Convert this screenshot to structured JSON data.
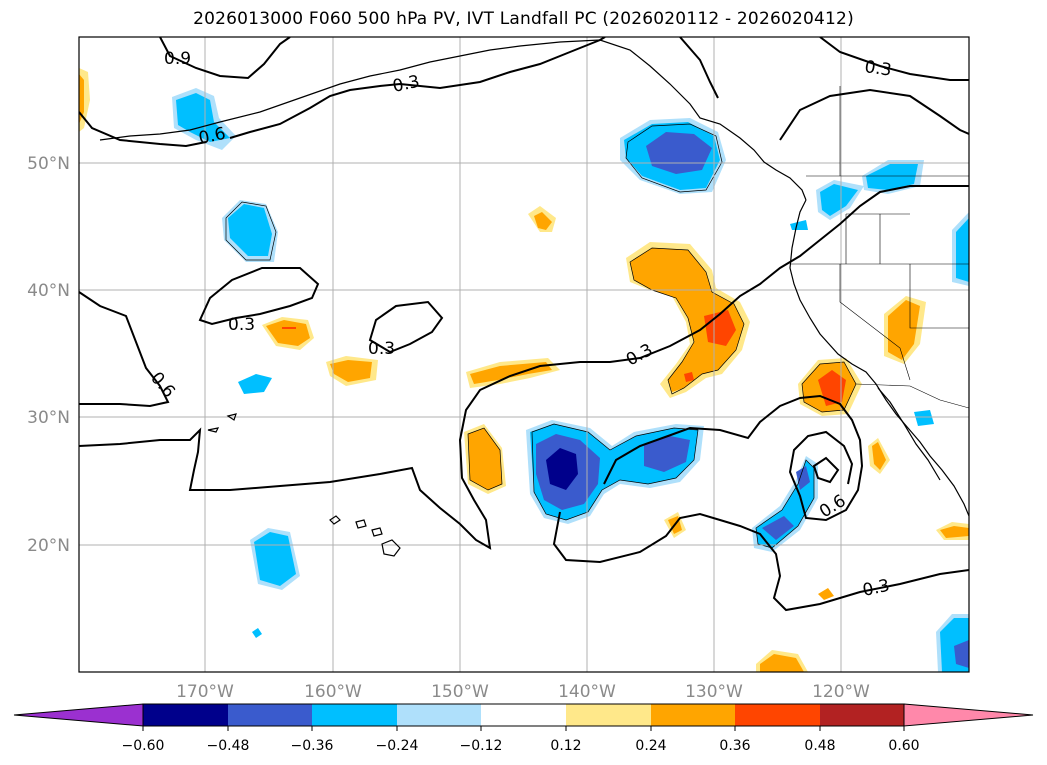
{
  "title": "2026013000 F060 500 hPa PV, IVT Landfall PC (2026020112 - 2026020412)",
  "lat_labels": [
    "50°N",
    "40°N",
    "30°N",
    "20°N"
  ],
  "lon_labels": [
    "170°W",
    "160°W",
    "150°W",
    "140°W",
    "130°W",
    "120°W"
  ],
  "contour_labels": [
    "0.9",
    "0.3",
    "0.6",
    "0.3",
    "0.3",
    "0.6",
    "0.3",
    "0.3",
    "0.6",
    "0.3"
  ],
  "colorbar": {
    "ticks": [
      "−0.60",
      "−0.48",
      "−0.36",
      "−0.24",
      "−0.12",
      "0.12",
      "0.24",
      "0.36",
      "0.48",
      "0.60"
    ],
    "colors": [
      "#9b30d0",
      "#00008b",
      "#3a5bcd",
      "#00bfff",
      "#afe0fb",
      "#ffffff",
      "#ffe88a",
      "#ffa500",
      "#ff4500",
      "#b22222",
      "#ff88aa"
    ]
  },
  "palette": {
    "neg1": "#afe0fb",
    "neg2": "#00bfff",
    "neg3": "#3a5bcd",
    "neg4": "#00008b",
    "pos1": "#ffe88a",
    "pos2": "#ffa500",
    "pos3": "#ff4500"
  }
}
